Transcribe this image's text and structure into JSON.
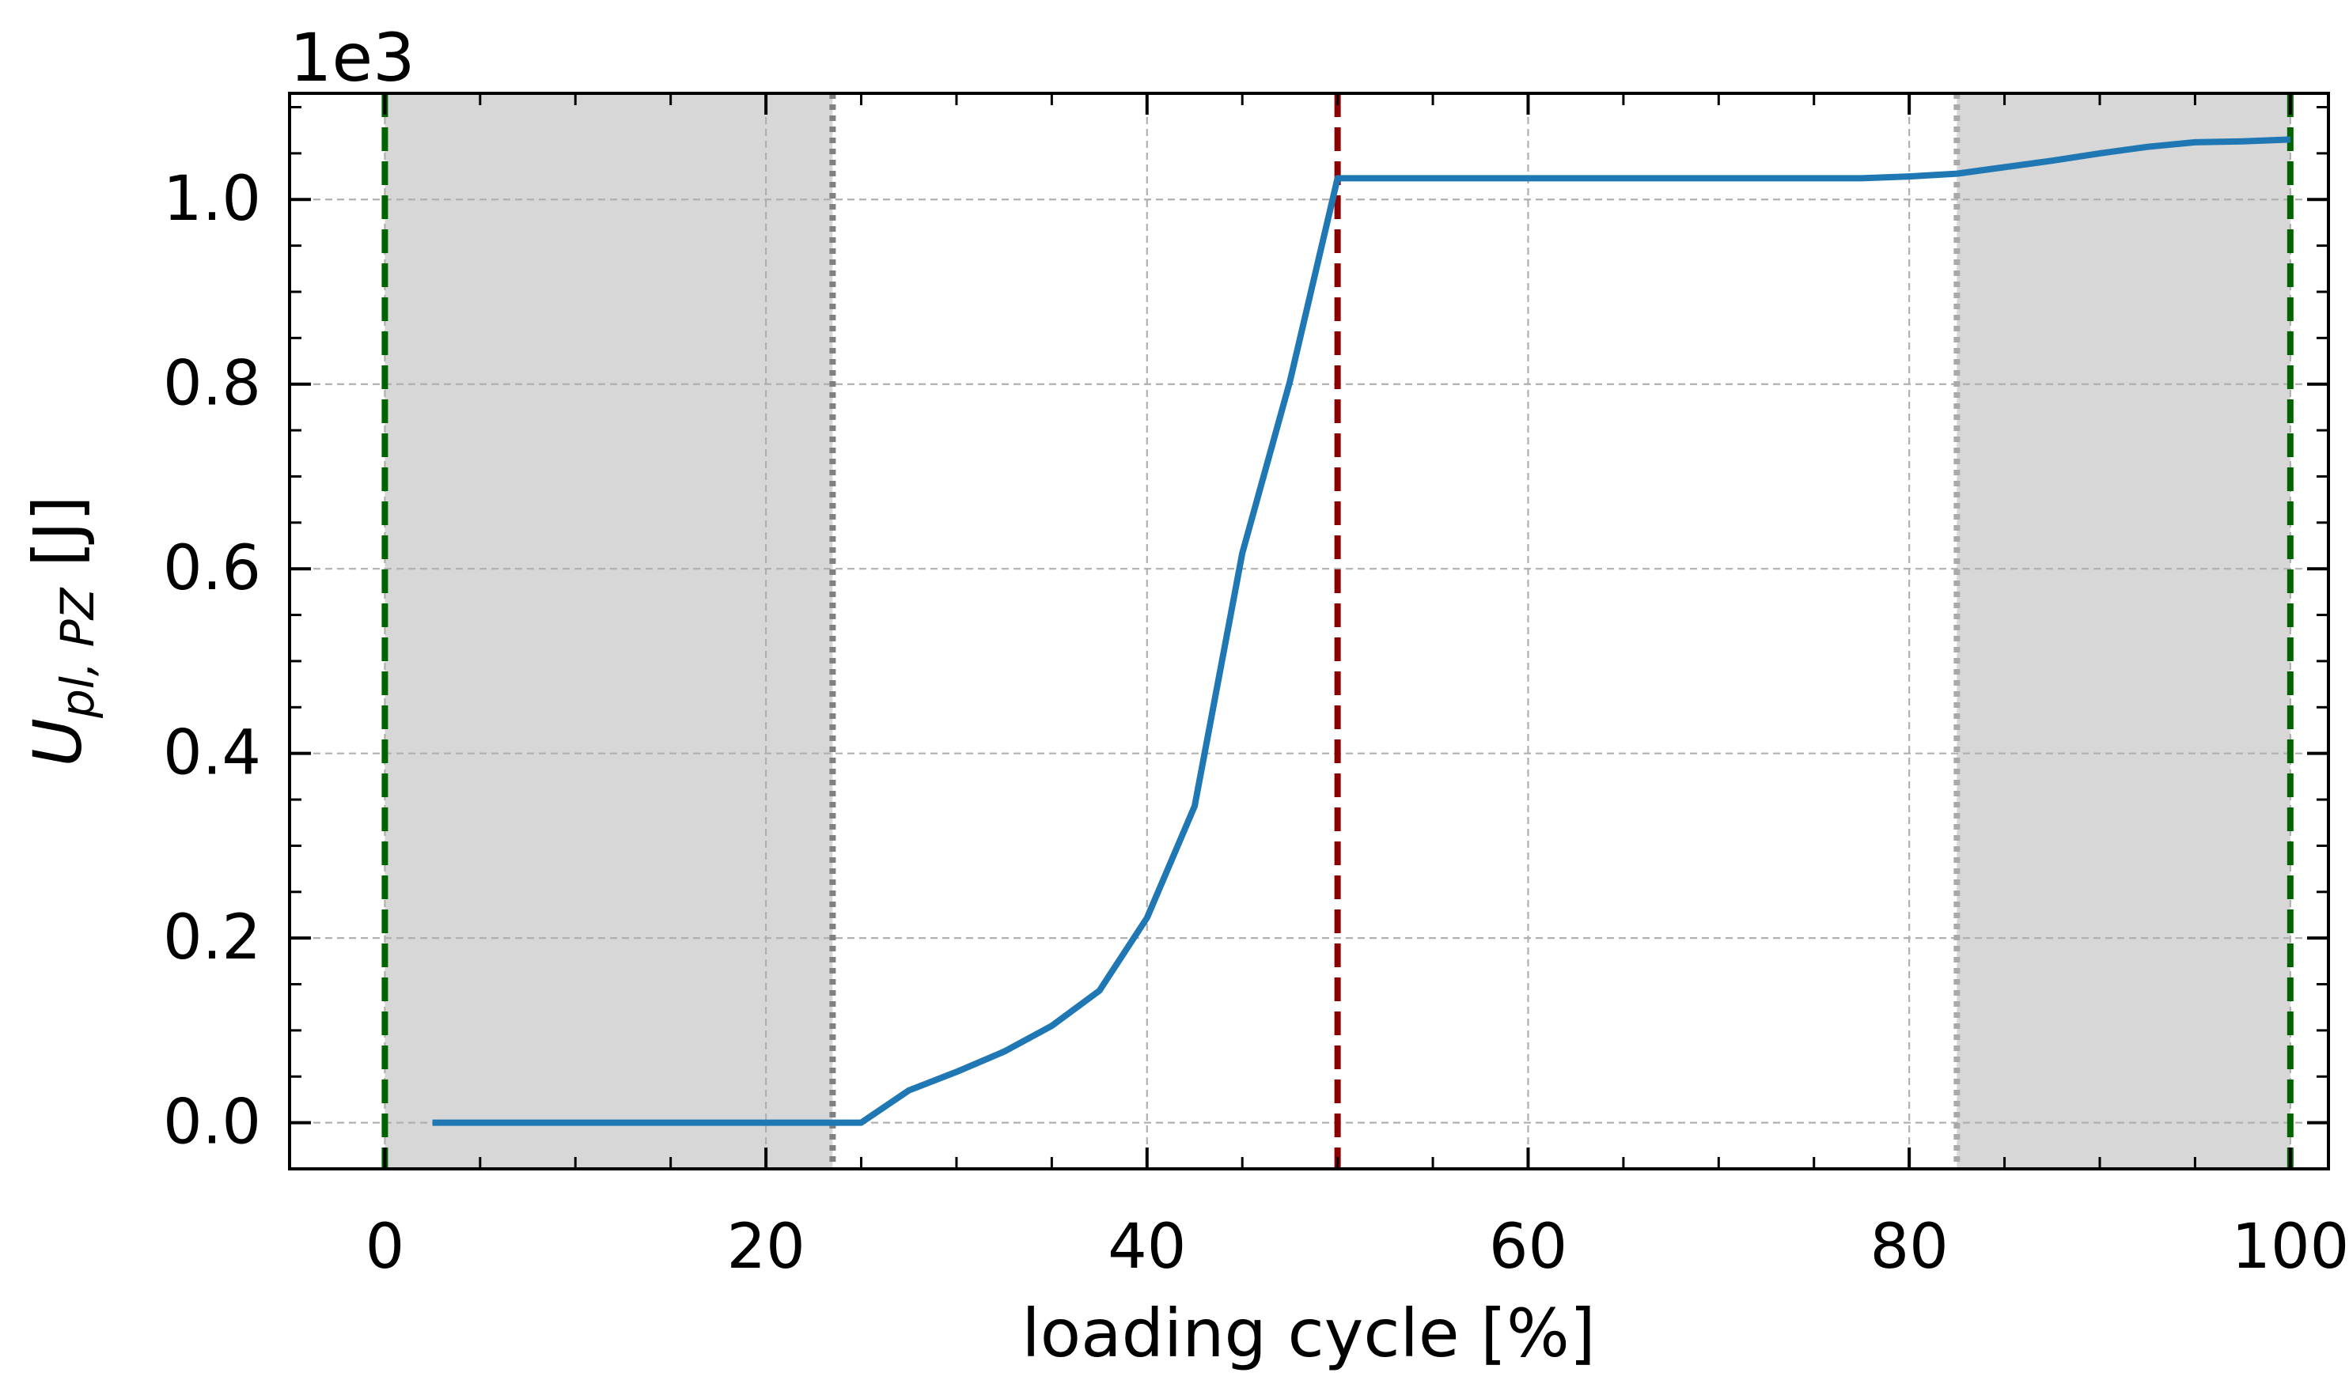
{
  "chart_data": {
    "type": "line",
    "title": "",
    "xlabel": "loading cycle [%]",
    "ylabel": {
      "symbol": "U",
      "subscript": "pl, PZ",
      "unit": "[J]"
    },
    "y_offset_label": "1e3",
    "xlim": [
      -5,
      102
    ],
    "ylim": [
      -0.05,
      1.115
    ],
    "xticks": [
      0,
      20,
      40,
      60,
      80,
      100
    ],
    "xtick_labels": [
      "0",
      "20",
      "40",
      "60",
      "80",
      "100"
    ],
    "yticks": [
      0.0,
      0.2,
      0.4,
      0.6,
      0.8,
      1.0
    ],
    "ytick_labels": [
      "0.0",
      "0.2",
      "0.4",
      "0.6",
      "0.8",
      "1.0"
    ],
    "grid": true,
    "series": [
      {
        "name": "U_pl,PZ",
        "color": "#1f77b4",
        "x": [
          2.5,
          5,
          10,
          15,
          20,
          23.5,
          25,
          27.5,
          30,
          32.5,
          35,
          37.5,
          40,
          42.5,
          45,
          47.5,
          50,
          55,
          60,
          65,
          70,
          75,
          77.5,
          80,
          82.5,
          85,
          87.5,
          90,
          92.5,
          95,
          97.5,
          100
        ],
        "y": [
          0.0,
          0.0,
          0.0,
          0.0,
          0.0,
          0.0,
          0.0,
          0.035,
          0.055,
          0.077,
          0.105,
          0.143,
          0.222,
          0.343,
          0.617,
          0.803,
          1.023,
          1.023,
          1.023,
          1.023,
          1.023,
          1.023,
          1.023,
          1.025,
          1.028,
          1.035,
          1.042,
          1.05,
          1.057,
          1.062,
          1.063,
          1.065
        ]
      }
    ],
    "shaded_regions": [
      {
        "x_start": 0,
        "x_end": 23.5,
        "color": "#d7d7d7"
      },
      {
        "x_start": 82.5,
        "x_end": 100,
        "color": "#d7d7d7"
      }
    ],
    "vertical_lines": [
      {
        "x": 0,
        "color": "#006400",
        "style": "dashed"
      },
      {
        "x": 23.5,
        "color": "#808080",
        "style": "dotted"
      },
      {
        "x": 50,
        "color": "#8b0000",
        "style": "dashed"
      },
      {
        "x": 82.5,
        "color": "#a9a9a9",
        "style": "dotted"
      },
      {
        "x": 100,
        "color": "#006400",
        "style": "dashed"
      }
    ]
  }
}
